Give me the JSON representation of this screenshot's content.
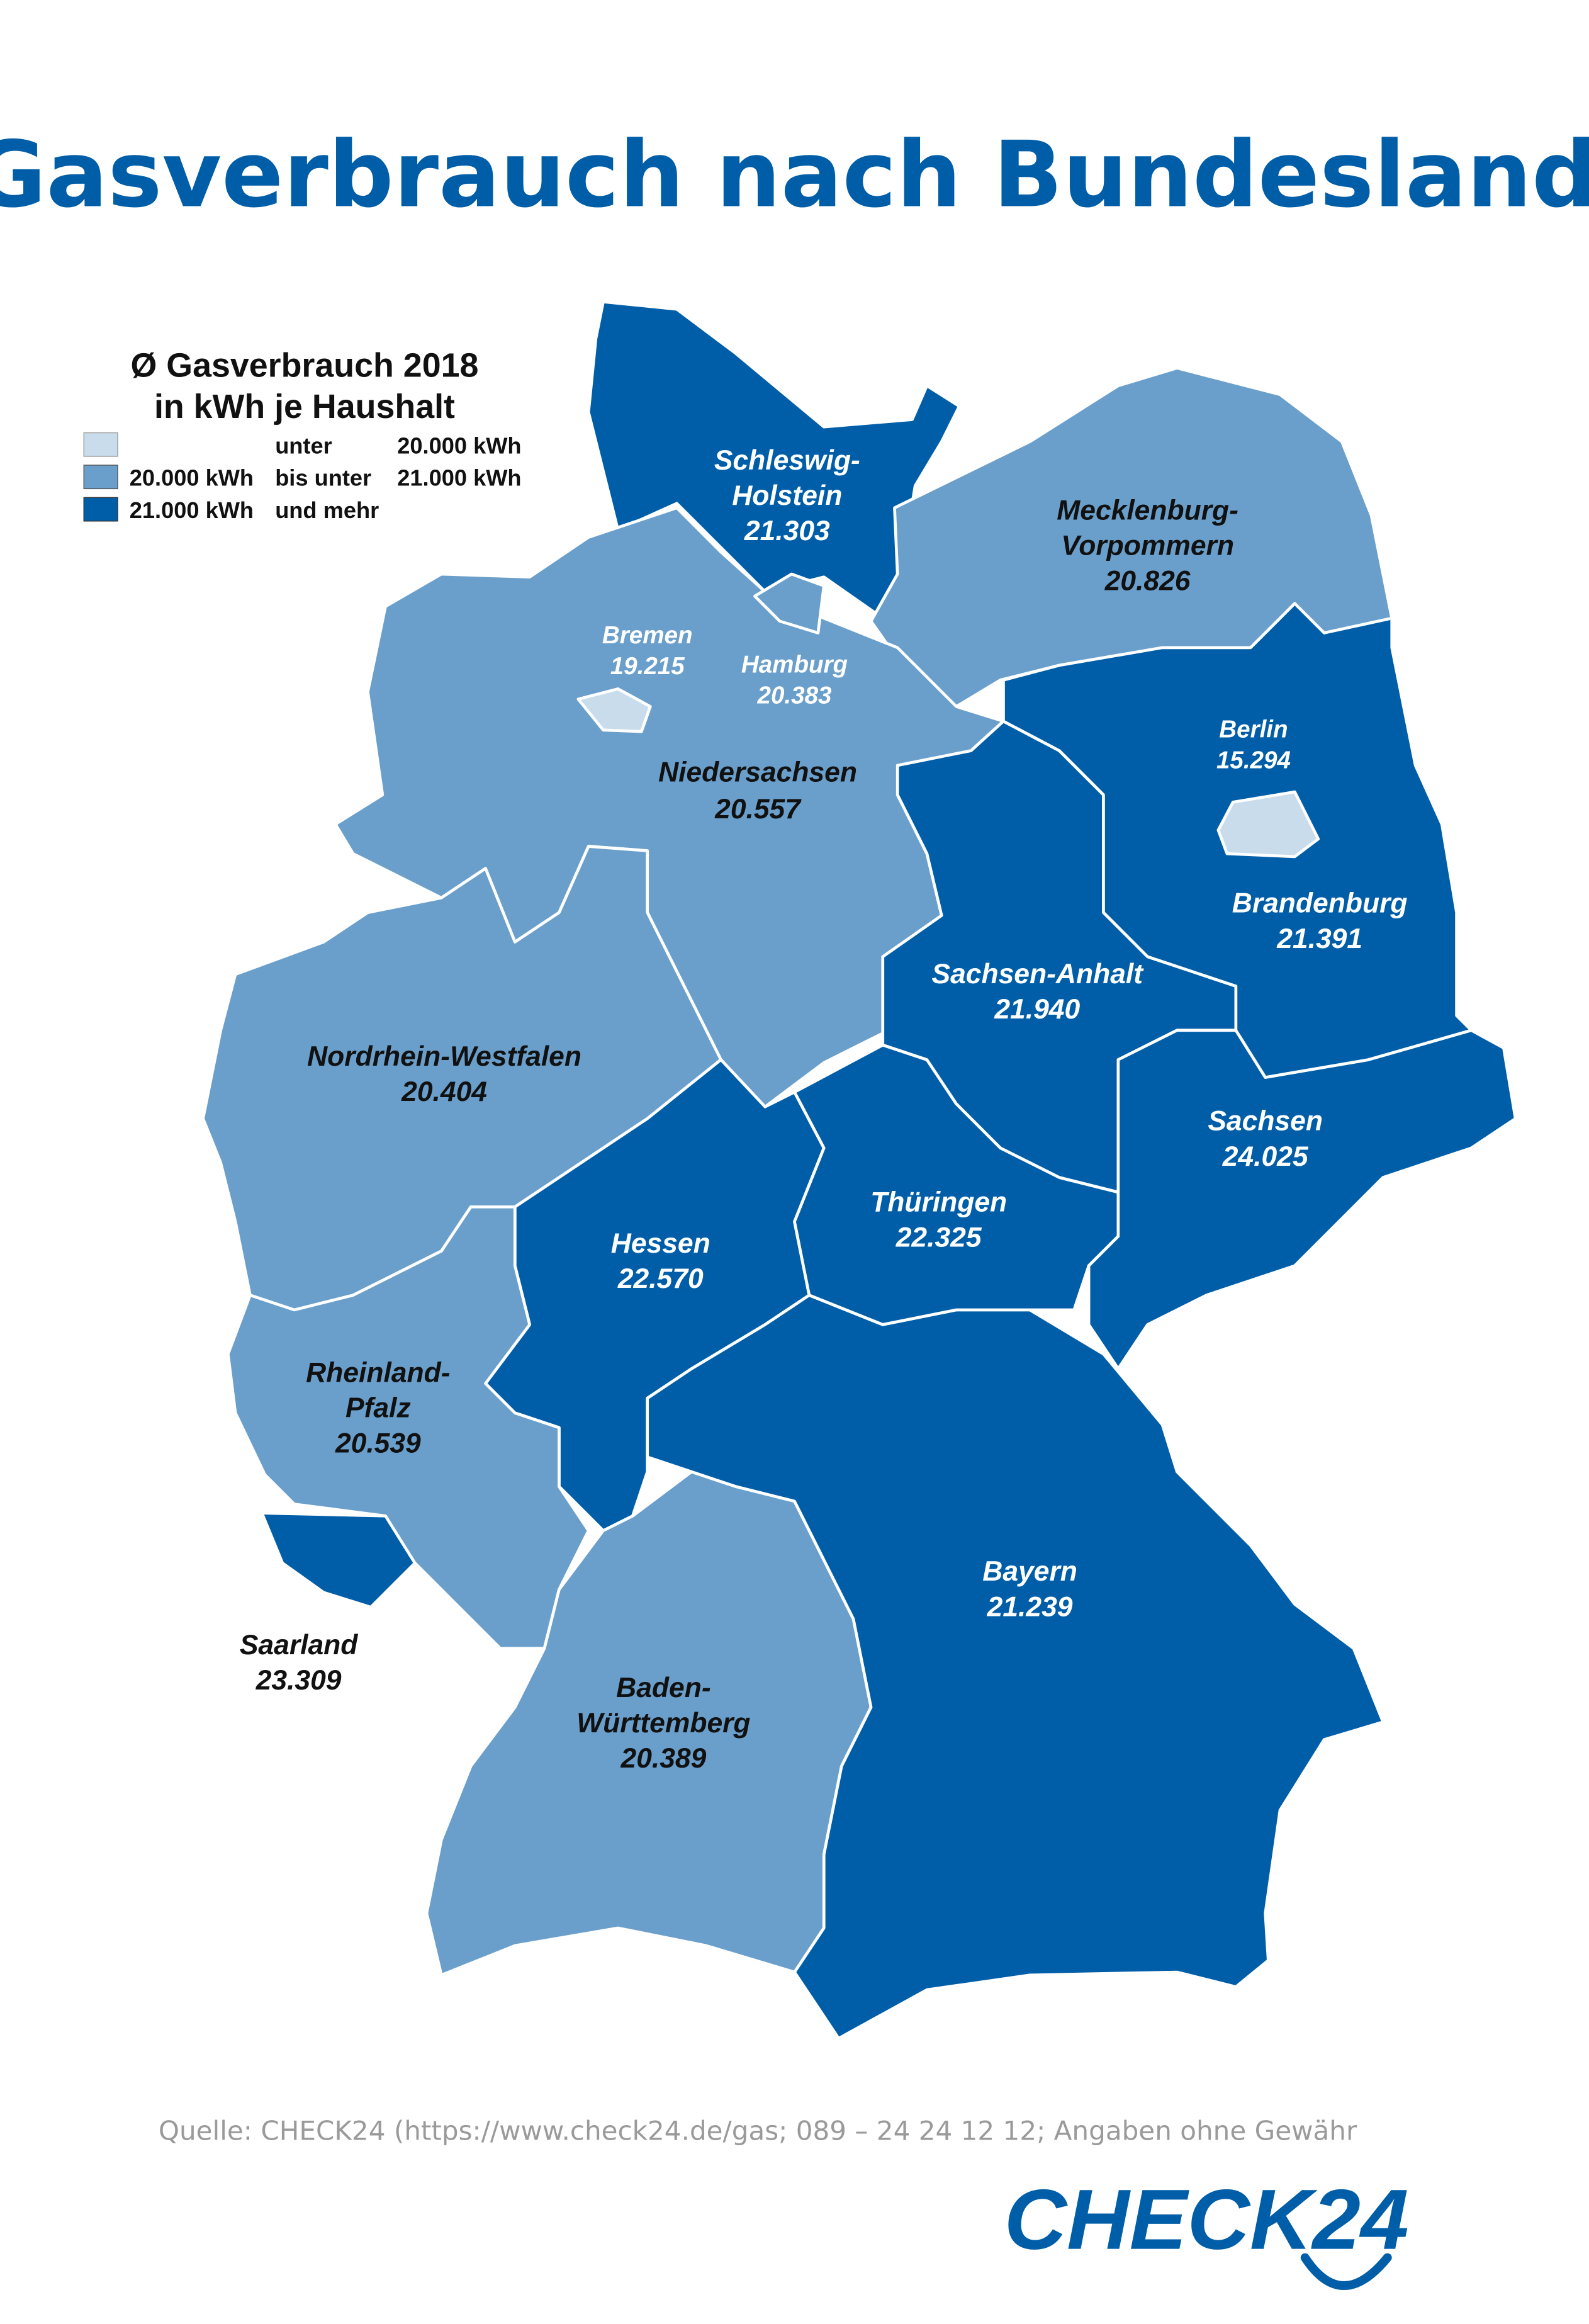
{
  "title": "Gasverbrauch nach Bundesland",
  "legend": {
    "title_line1": "Ø Gasverbrauch 2018",
    "title_line2": "in kWh je Haushalt",
    "items": [
      {
        "from": "",
        "mid": "unter",
        "to": "20.000 kWh",
        "color": "#c9dcec"
      },
      {
        "from": "20.000 kWh",
        "mid": "bis unter",
        "to": "21.000 kWh",
        "color": "#6a9fcb"
      },
      {
        "from": "21.000 kWh",
        "mid": "und mehr",
        "to": "",
        "color": "#005ea8"
      }
    ]
  },
  "colors": {
    "low": "#c9dcec",
    "mid": "#6a9fcb",
    "high": "#005ea8",
    "title": "#005ea8",
    "source": "#9a9a9a"
  },
  "states": {
    "schleswig_holstein": {
      "name_lines": [
        "Schleswig-",
        "Holstein"
      ],
      "value": "21.303",
      "class": "high"
    },
    "hamburg": {
      "name_lines": [
        "Hamburg"
      ],
      "value": "20.383",
      "class": "mid"
    },
    "bremen": {
      "name_lines": [
        "Bremen"
      ],
      "value": "19.215",
      "class": "low"
    },
    "mecklenburg_vorpommern": {
      "name_lines": [
        "Mecklenburg-",
        "Vorpommern"
      ],
      "value": "20.826",
      "class": "mid"
    },
    "niedersachsen": {
      "name_lines": [
        "Niedersachsen"
      ],
      "value": "20.557",
      "class": "mid"
    },
    "berlin": {
      "name_lines": [
        "Berlin"
      ],
      "value": "15.294",
      "class": "low"
    },
    "brandenburg": {
      "name_lines": [
        "Brandenburg"
      ],
      "value": "21.391",
      "class": "high"
    },
    "sachsen_anhalt": {
      "name_lines": [
        "Sachsen-Anhalt"
      ],
      "value": "21.940",
      "class": "high"
    },
    "nordrhein_westfalen": {
      "name_lines": [
        "Nordrhein-Westfalen"
      ],
      "value": "20.404",
      "class": "mid"
    },
    "sachsen": {
      "name_lines": [
        "Sachsen"
      ],
      "value": "24.025",
      "class": "high"
    },
    "hessen": {
      "name_lines": [
        "Hessen"
      ],
      "value": "22.570",
      "class": "high"
    },
    "thueringen": {
      "name_lines": [
        "Thüringen"
      ],
      "value": "22.325",
      "class": "high"
    },
    "rheinland_pfalz": {
      "name_lines": [
        "Rheinland-",
        "Pfalz"
      ],
      "value": "20.539",
      "class": "mid"
    },
    "saarland": {
      "name_lines": [
        "Saarland"
      ],
      "value": "23.309",
      "class": "high"
    },
    "bayern": {
      "name_lines": [
        "Bayern"
      ],
      "value": "21.239",
      "class": "high"
    },
    "baden_wuerttemberg": {
      "name_lines": [
        "Baden-",
        "Württemberg"
      ],
      "value": "20.389",
      "class": "mid"
    }
  },
  "source": "Quelle: CHECK24 (https://www.check24.de/gas; 089 – 24 24 12 12; Angaben ohne Gewähr",
  "logo": "CHECK24"
}
